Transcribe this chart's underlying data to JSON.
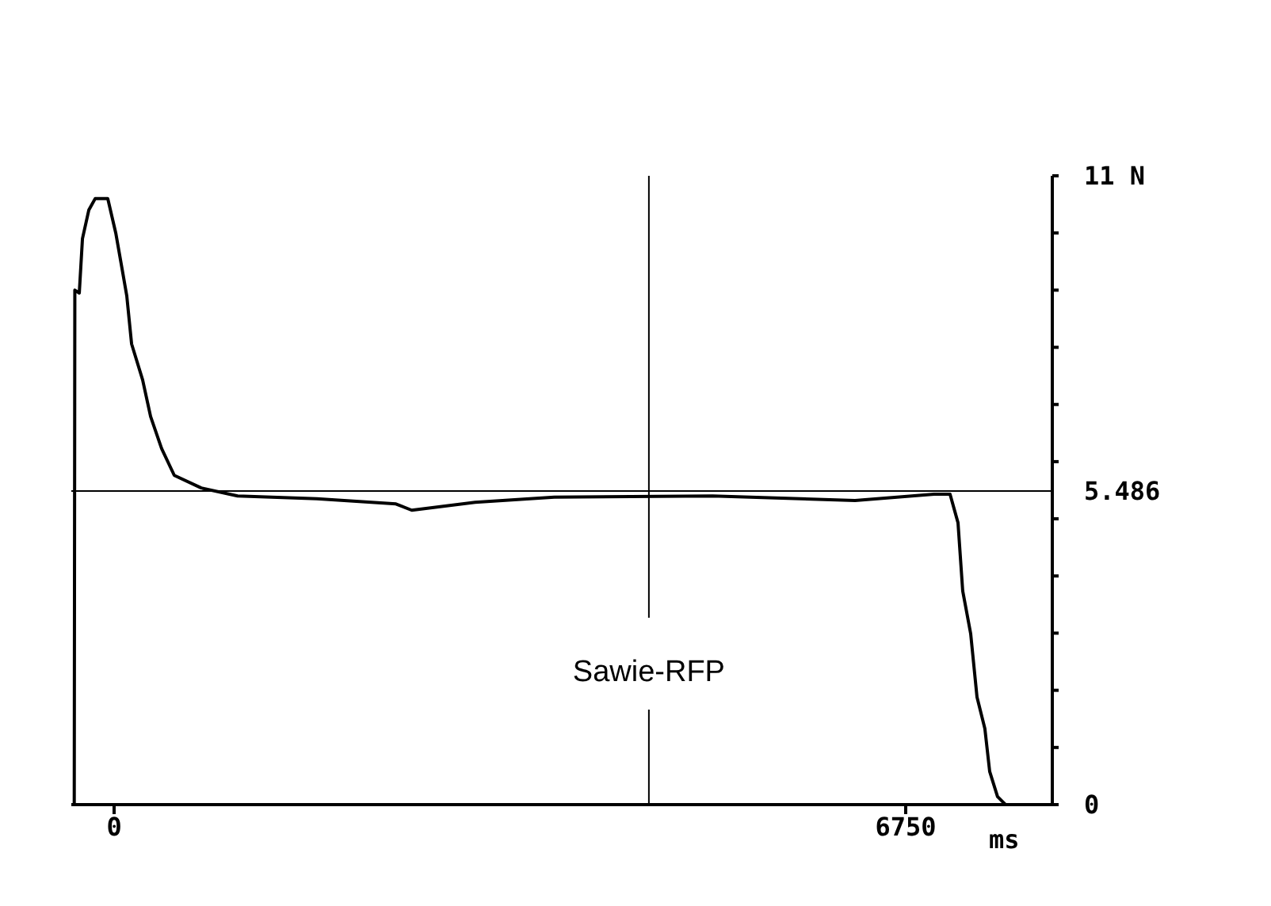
{
  "chart_data": {
    "type": "line",
    "xlabel": "ms",
    "x": [
      -340,
      -335,
      -297,
      -270,
      -216,
      -162,
      -54,
      14,
      68,
      108,
      149,
      243,
      311,
      405,
      513,
      743,
      1053,
      1728,
      2403,
      2538,
      3078,
      3753,
      5103,
      6318,
      6993,
      7128,
      7196,
      7236,
      7304,
      7358,
      7425,
      7466,
      7533,
      7601
    ],
    "series": [
      {
        "color": "#000000",
        "values": [
          0,
          9.0,
          8.95,
          9.9,
          10.4,
          10.6,
          10.6,
          10.0,
          9.37,
          8.9,
          8.06,
          7.43,
          6.79,
          6.23,
          5.76,
          5.54,
          5.4,
          5.35,
          5.26,
          5.15,
          5.29,
          5.38,
          5.4,
          5.32,
          5.43,
          5.43,
          4.93,
          3.74,
          2.99,
          1.88,
          1.33,
          0.58,
          0.14,
          0
        ]
      }
    ],
    "xlim": [
      -365,
      8000
    ],
    "xticks": [
      0,
      6750
    ],
    "ylim": [
      0,
      11
    ],
    "yticks": [
      0,
      {
        "value": 1,
        "label": null
      },
      {
        "value": 2,
        "label": null
      },
      {
        "value": 3,
        "label": null
      },
      {
        "value": 4,
        "label": null
      },
      {
        "value": 5,
        "label": null
      },
      {
        "value": 6,
        "label": null
      },
      {
        "value": 7,
        "label": null
      },
      {
        "value": 8,
        "label": null
      },
      {
        "value": 9,
        "label": null
      },
      {
        "value": 10,
        "label": null
      },
      {
        "value": 11,
        "label": "11 N"
      }
    ],
    "ref_lines": [
      {
        "axis": "y",
        "value": 5.486,
        "label": "5.486",
        "color": "#000000"
      },
      {
        "axis": "x",
        "value": 4560,
        "label": "Sawie-RFP",
        "color": "#000000"
      }
    ],
    "marker": "none",
    "line_style": "solid",
    "grid": false,
    "legend": false
  }
}
